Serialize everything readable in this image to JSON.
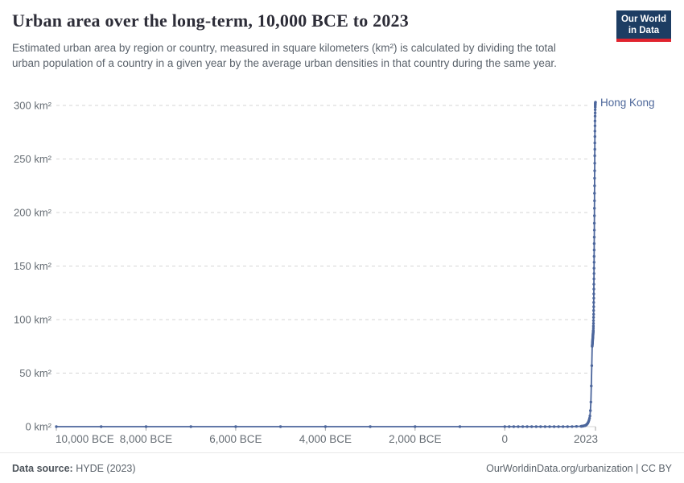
{
  "header": {
    "title": "Urban area over the long-term, 10,000 BCE to 2023",
    "subtitle": "Estimated urban area by region or country, measured in square kilometers (km²) is calculated by dividing the total urban population of a country in a given year by the average urban densities in that country during the same year.",
    "logo": {
      "line1": "Our World",
      "line2": "in Data",
      "bg_color": "#1d3d63",
      "stripe_color": "#e0232e"
    }
  },
  "footer": {
    "source_label": "Data source:",
    "source_value": " HYDE (2023)",
    "right_text": "OurWorldinData.org/urbanization | CC BY"
  },
  "chart_data": {
    "type": "line",
    "title": "Urban area over the long-term, 10,000 BCE to 2023",
    "unit": "km²",
    "xlim": [
      -10000,
      2023
    ],
    "ylim": [
      0,
      300
    ],
    "grid": true,
    "legend_position": "end-of-line-label",
    "colors": {
      "line": "#4c669c",
      "entity_label": "#4d679a",
      "grid": "#d6d6d6",
      "tick_text": "#666d74",
      "tick_mark": "#a3a3a3"
    },
    "yticks": [
      {
        "value": 0,
        "label": "0 km²"
      },
      {
        "value": 50,
        "label": "50 km²"
      },
      {
        "value": 100,
        "label": "100 km²"
      },
      {
        "value": 150,
        "label": "150 km²"
      },
      {
        "value": 200,
        "label": "200 km²"
      },
      {
        "value": 250,
        "label": "250 km²"
      },
      {
        "value": 300,
        "label": "300 km²"
      }
    ],
    "xticks": [
      {
        "value": -10000,
        "label": "10,000 BCE"
      },
      {
        "value": -8000,
        "label": "8,000 BCE"
      },
      {
        "value": -6000,
        "label": "6,000 BCE"
      },
      {
        "value": -4000,
        "label": "4,000 BCE"
      },
      {
        "value": -2000,
        "label": "2,000 BCE"
      },
      {
        "value": 0,
        "label": "0"
      },
      {
        "value": 2023,
        "label": "2023"
      }
    ],
    "series": [
      {
        "name": "Hong Kong",
        "points": [
          [
            -10000,
            0
          ],
          [
            -9000,
            0
          ],
          [
            -8000,
            0
          ],
          [
            -7000,
            0
          ],
          [
            -6000,
            0
          ],
          [
            -5000,
            0
          ],
          [
            -4000,
            0
          ],
          [
            -3000,
            0
          ],
          [
            -2000,
            0
          ],
          [
            -1000,
            0
          ],
          [
            0,
            0
          ],
          [
            100,
            0
          ],
          [
            200,
            0
          ],
          [
            300,
            0
          ],
          [
            400,
            0
          ],
          [
            500,
            0
          ],
          [
            600,
            0
          ],
          [
            700,
            0
          ],
          [
            800,
            0
          ],
          [
            900,
            0
          ],
          [
            1000,
            0
          ],
          [
            1100,
            0
          ],
          [
            1200,
            0
          ],
          [
            1300,
            0
          ],
          [
            1400,
            0
          ],
          [
            1500,
            0.1
          ],
          [
            1600,
            0.2
          ],
          [
            1700,
            0.3
          ],
          [
            1710,
            0.35
          ],
          [
            1720,
            0.4
          ],
          [
            1730,
            0.45
          ],
          [
            1740,
            0.5
          ],
          [
            1750,
            0.6
          ],
          [
            1760,
            0.7
          ],
          [
            1770,
            0.8
          ],
          [
            1780,
            0.9
          ],
          [
            1790,
            1
          ],
          [
            1800,
            1.2
          ],
          [
            1810,
            1.4
          ],
          [
            1820,
            1.7
          ],
          [
            1830,
            2.1
          ],
          [
            1840,
            2.6
          ],
          [
            1850,
            3.2
          ],
          [
            1860,
            4
          ],
          [
            1870,
            5
          ],
          [
            1880,
            6.2
          ],
          [
            1890,
            7.8
          ],
          [
            1900,
            10
          ],
          [
            1910,
            15
          ],
          [
            1920,
            23
          ],
          [
            1930,
            38
          ],
          [
            1940,
            57
          ],
          [
            1950,
            75
          ],
          [
            1951,
            75.6
          ],
          [
            1952,
            76.2
          ],
          [
            1953,
            76.8
          ],
          [
            1954,
            77.4
          ],
          [
            1955,
            78
          ],
          [
            1956,
            78.6
          ],
          [
            1957,
            79.2
          ],
          [
            1958,
            79.8
          ],
          [
            1959,
            80.4
          ],
          [
            1960,
            81
          ],
          [
            1961,
            81.6
          ],
          [
            1962,
            82.2
          ],
          [
            1963,
            82.8
          ],
          [
            1964,
            83.4
          ],
          [
            1965,
            84
          ],
          [
            1966,
            84.6
          ],
          [
            1967,
            85.2
          ],
          [
            1968,
            85.8
          ],
          [
            1969,
            86.4
          ],
          [
            1970,
            87
          ],
          [
            1971,
            87.6
          ],
          [
            1972,
            88.2
          ],
          [
            1973,
            88.8
          ],
          [
            1974,
            89.4
          ],
          [
            1975,
            90
          ],
          [
            1976,
            92
          ],
          [
            1977,
            94
          ],
          [
            1978,
            96.5
          ],
          [
            1979,
            99
          ],
          [
            1980,
            102
          ],
          [
            1981,
            105
          ],
          [
            1982,
            108.5
          ],
          [
            1983,
            112
          ],
          [
            1984,
            116
          ],
          [
            1985,
            120
          ],
          [
            1986,
            124
          ],
          [
            1987,
            128.5
          ],
          [
            1988,
            133
          ],
          [
            1989,
            138
          ],
          [
            1990,
            143
          ],
          [
            1991,
            148
          ],
          [
            1992,
            153.5
          ],
          [
            1993,
            159
          ],
          [
            1994,
            165
          ],
          [
            1995,
            171
          ],
          [
            1996,
            177
          ],
          [
            1997,
            183.5
          ],
          [
            1998,
            190
          ],
          [
            1999,
            197
          ],
          [
            2000,
            204
          ],
          [
            2001,
            211
          ],
          [
            2002,
            218
          ],
          [
            2003,
            225
          ],
          [
            2004,
            232
          ],
          [
            2005,
            239
          ],
          [
            2006,
            246
          ],
          [
            2007,
            253
          ],
          [
            2008,
            259
          ],
          [
            2009,
            265
          ],
          [
            2010,
            271
          ],
          [
            2011,
            276
          ],
          [
            2012,
            281
          ],
          [
            2013,
            285.5
          ],
          [
            2014,
            290
          ],
          [
            2015,
            293
          ],
          [
            2016,
            296
          ],
          [
            2017,
            298.5
          ],
          [
            2018,
            300
          ],
          [
            2019,
            301
          ],
          [
            2020,
            301.8
          ],
          [
            2021,
            302.3
          ],
          [
            2022,
            302.7
          ],
          [
            2023,
            303
          ]
        ]
      }
    ]
  }
}
